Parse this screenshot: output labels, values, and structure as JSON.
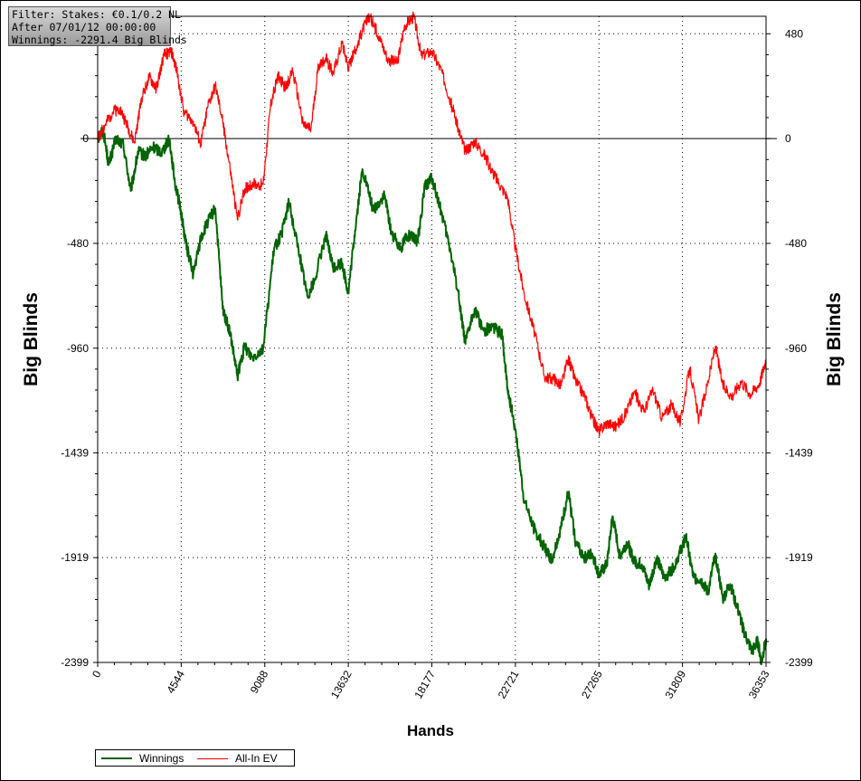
{
  "filter_box": {
    "lines": [
      "Filter: Stakes: €0.1/0.2 NL",
      "After 07/01/12 00:00:00",
      "Winnings: -2291.4 Big Blinds"
    ]
  },
  "chart_data": {
    "type": "line",
    "title": "",
    "xlabel": "Hands",
    "ylabel": "Big Blinds",
    "xlim": [
      0,
      36353
    ],
    "ylim": [
      -2399,
      560
    ],
    "x_ticks": [
      "0",
      "4544",
      "9088",
      "13632",
      "18177",
      "22721",
      "27265",
      "31809",
      "36353"
    ],
    "y_ticks": [
      "480",
      "0",
      "-480",
      "-960",
      "-1439",
      "-1919",
      "-2399"
    ],
    "grid": true,
    "legend": "bottom-left",
    "series": [
      {
        "name": "Winnings",
        "color": "#006400",
        "points": [
          [
            0,
            0
          ],
          [
            300,
            40
          ],
          [
            600,
            -120
          ],
          [
            1000,
            0
          ],
          [
            1400,
            -30
          ],
          [
            1800,
            -240
          ],
          [
            2200,
            -60
          ],
          [
            2600,
            -80
          ],
          [
            3000,
            -40
          ],
          [
            3500,
            -60
          ],
          [
            3900,
            0
          ],
          [
            4200,
            -200
          ],
          [
            4500,
            -320
          ],
          [
            4800,
            -480
          ],
          [
            5200,
            -620
          ],
          [
            5600,
            -460
          ],
          [
            6000,
            -380
          ],
          [
            6400,
            -320
          ],
          [
            6800,
            -780
          ],
          [
            7200,
            -890
          ],
          [
            7600,
            -1090
          ],
          [
            8000,
            -950
          ],
          [
            8400,
            -1000
          ],
          [
            9000,
            -960
          ],
          [
            9600,
            -500
          ],
          [
            10000,
            -440
          ],
          [
            10400,
            -290
          ],
          [
            11000,
            -540
          ],
          [
            11400,
            -720
          ],
          [
            11800,
            -650
          ],
          [
            12400,
            -440
          ],
          [
            12800,
            -590
          ],
          [
            13300,
            -570
          ],
          [
            13632,
            -710
          ],
          [
            14000,
            -420
          ],
          [
            14400,
            -140
          ],
          [
            15000,
            -330
          ],
          [
            15600,
            -260
          ],
          [
            16000,
            -440
          ],
          [
            16500,
            -500
          ],
          [
            16800,
            -440
          ],
          [
            17400,
            -470
          ],
          [
            17800,
            -220
          ],
          [
            18177,
            -180
          ],
          [
            18700,
            -340
          ],
          [
            19200,
            -520
          ],
          [
            19600,
            -700
          ],
          [
            20000,
            -940
          ],
          [
            20500,
            -780
          ],
          [
            21000,
            -880
          ],
          [
            21500,
            -860
          ],
          [
            22000,
            -900
          ],
          [
            22300,
            -1150
          ],
          [
            22721,
            -1330
          ],
          [
            23200,
            -1660
          ],
          [
            23800,
            -1800
          ],
          [
            24300,
            -1870
          ],
          [
            24700,
            -1930
          ],
          [
            25200,
            -1780
          ],
          [
            25600,
            -1620
          ],
          [
            26000,
            -1850
          ],
          [
            26500,
            -1920
          ],
          [
            26900,
            -1900
          ],
          [
            27265,
            -2000
          ],
          [
            27700,
            -1950
          ],
          [
            28000,
            -1730
          ],
          [
            28400,
            -1910
          ],
          [
            28800,
            -1850
          ],
          [
            29200,
            -1940
          ],
          [
            29600,
            -1950
          ],
          [
            30000,
            -2050
          ],
          [
            30400,
            -1920
          ],
          [
            30800,
            -2010
          ],
          [
            31200,
            -1980
          ],
          [
            31600,
            -1910
          ],
          [
            32000,
            -1820
          ],
          [
            32400,
            -2010
          ],
          [
            32800,
            -2020
          ],
          [
            33200,
            -2080
          ],
          [
            33600,
            -1900
          ],
          [
            34000,
            -2110
          ],
          [
            34400,
            -2040
          ],
          [
            34800,
            -2150
          ],
          [
            35200,
            -2270
          ],
          [
            35600,
            -2350
          ],
          [
            35900,
            -2300
          ],
          [
            36100,
            -2400
          ],
          [
            36353,
            -2290
          ]
        ]
      },
      {
        "name": "All-In EV",
        "color": "#ff0000",
        "points": [
          [
            0,
            0
          ],
          [
            400,
            60
          ],
          [
            800,
            120
          ],
          [
            1200,
            140
          ],
          [
            1600,
            60
          ],
          [
            2000,
            -20
          ],
          [
            2400,
            190
          ],
          [
            2800,
            280
          ],
          [
            3200,
            230
          ],
          [
            3600,
            380
          ],
          [
            4000,
            400
          ],
          [
            4300,
            310
          ],
          [
            4700,
            120
          ],
          [
            5200,
            80
          ],
          [
            5600,
            -30
          ],
          [
            6000,
            150
          ],
          [
            6400,
            240
          ],
          [
            6800,
            80
          ],
          [
            7200,
            -140
          ],
          [
            7600,
            -370
          ],
          [
            8000,
            -230
          ],
          [
            8400,
            -210
          ],
          [
            9000,
            -210
          ],
          [
            9400,
            150
          ],
          [
            9800,
            290
          ],
          [
            10200,
            230
          ],
          [
            10600,
            310
          ],
          [
            11200,
            60
          ],
          [
            11600,
            40
          ],
          [
            12000,
            330
          ],
          [
            12400,
            370
          ],
          [
            12800,
            300
          ],
          [
            13300,
            440
          ],
          [
            13632,
            330
          ],
          [
            14000,
            400
          ],
          [
            14400,
            500
          ],
          [
            14800,
            560
          ],
          [
            15300,
            470
          ],
          [
            15800,
            360
          ],
          [
            16300,
            350
          ],
          [
            16700,
            520
          ],
          [
            17200,
            560
          ],
          [
            17600,
            380
          ],
          [
            18177,
            400
          ],
          [
            18700,
            310
          ],
          [
            19200,
            170
          ],
          [
            19600,
            50
          ],
          [
            20000,
            -60
          ],
          [
            20500,
            -10
          ],
          [
            21000,
            -70
          ],
          [
            21400,
            -140
          ],
          [
            21800,
            -200
          ],
          [
            22300,
            -270
          ],
          [
            22721,
            -500
          ],
          [
            23200,
            -710
          ],
          [
            23800,
            -900
          ],
          [
            24300,
            -1090
          ],
          [
            24800,
            -1100
          ],
          [
            25200,
            -1130
          ],
          [
            25600,
            -1010
          ],
          [
            26000,
            -1110
          ],
          [
            26500,
            -1180
          ],
          [
            26900,
            -1280
          ],
          [
            27265,
            -1340
          ],
          [
            27700,
            -1300
          ],
          [
            28200,
            -1320
          ],
          [
            28700,
            -1260
          ],
          [
            29200,
            -1160
          ],
          [
            29700,
            -1250
          ],
          [
            30200,
            -1150
          ],
          [
            30700,
            -1280
          ],
          [
            31200,
            -1220
          ],
          [
            31700,
            -1300
          ],
          [
            32200,
            -1050
          ],
          [
            32700,
            -1290
          ],
          [
            33200,
            -1110
          ],
          [
            33600,
            -950
          ],
          [
            34000,
            -1130
          ],
          [
            34500,
            -1180
          ],
          [
            35000,
            -1110
          ],
          [
            35500,
            -1170
          ],
          [
            36000,
            -1120
          ],
          [
            36353,
            -1010
          ]
        ]
      }
    ]
  }
}
